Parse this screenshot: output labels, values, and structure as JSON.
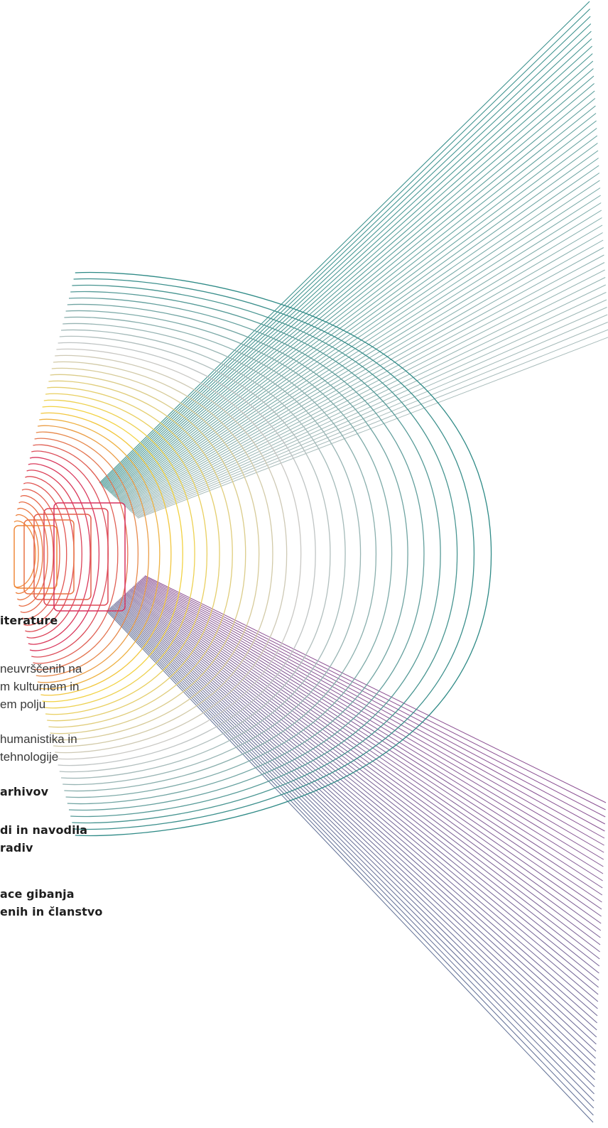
{
  "menu": {
    "items": [
      {
        "label": "iterature",
        "style": "bold"
      },
      {
        "label": "neuvrščenih na",
        "style": "light"
      },
      {
        "label": "m kulturnem in",
        "style": "light"
      },
      {
        "label": "em polju",
        "style": "light"
      },
      {
        "label": "humanistika in",
        "style": "light"
      },
      {
        "label": "tehnologije",
        "style": "light"
      },
      {
        "label": "arhivov",
        "style": "bold"
      },
      {
        "label": "di in navodila",
        "style": "bold"
      },
      {
        "label": "radiv",
        "style": "bold"
      },
      {
        "label": "ace gibanja",
        "style": "bold"
      },
      {
        "label": "enih in članstvo",
        "style": "bold"
      }
    ]
  },
  "artwork": {
    "name": "line-fan-illustration",
    "colors": {
      "magenta": "#d8325e",
      "orange": "#ef8a3c",
      "yellow": "#f4d23c",
      "teal": "#2e8a86",
      "blue": "#5d6d93",
      "purple": "#8b4f92",
      "grey": "#c8c8c8"
    }
  }
}
